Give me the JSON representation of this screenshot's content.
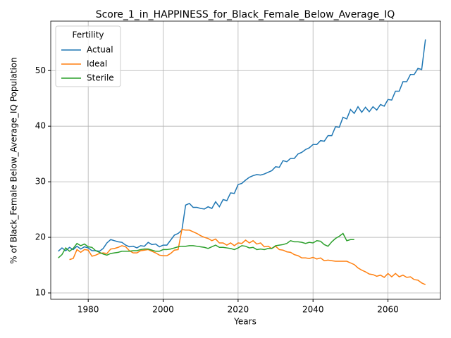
{
  "chart_data": {
    "type": "line",
    "title": "Score_1_in_HAPPINESS_for_Black_Female_Below_Average_IQ",
    "xlabel": "Years",
    "ylabel": "% of Black_Female Below_Average_IQ Population",
    "legend_title": "Fertility",
    "legend": "upper left",
    "grid": true,
    "xlim": [
      1970,
      2074
    ],
    "ylim": [
      8.86,
      58.9
    ],
    "xticks": [
      1980,
      2000,
      2020,
      2040,
      2060
    ],
    "yticks": [
      10,
      20,
      30,
      40,
      50
    ],
    "series": [
      {
        "name": "Actual",
        "color": "#1f77b4",
        "x": [
          1972,
          1973,
          1974,
          1975,
          1976,
          1977,
          1978,
          1979,
          1980,
          1981,
          1982,
          1983,
          1984,
          1985,
          1986,
          1987,
          1988,
          1989,
          1990,
          1991,
          1992,
          1993,
          1994,
          1995,
          1996,
          1997,
          1998,
          1999,
          2000,
          2001,
          2002,
          2003,
          2004,
          2005,
          2006,
          2007,
          2008,
          2009,
          2010,
          2011,
          2012,
          2013,
          2014,
          2015,
          2016,
          2017,
          2018,
          2019,
          2020,
          2021,
          2022,
          2023,
          2024,
          2025,
          2026,
          2027,
          2028,
          2029,
          2030,
          2031,
          2032,
          2033,
          2034,
          2035,
          2036,
          2037,
          2038,
          2039,
          2040,
          2041,
          2042,
          2043,
          2044,
          2045,
          2046,
          2047,
          2048,
          2049,
          2050,
          2051,
          2052,
          2053,
          2054,
          2055,
          2056,
          2057,
          2058,
          2059,
          2060,
          2061,
          2062,
          2063,
          2064,
          2065,
          2066,
          2067,
          2068,
          2069,
          2070
        ],
        "values": [
          17.5,
          18.1,
          17.6,
          18.2,
          17.8,
          18.4,
          17.9,
          18.3,
          18.1,
          17.6,
          17.6,
          17.5,
          18.0,
          19.0,
          19.6,
          19.4,
          19.2,
          19.1,
          18.6,
          18.3,
          18.4,
          18.1,
          18.5,
          18.4,
          19.1,
          18.7,
          18.8,
          18.3,
          18.6,
          18.6,
          19.5,
          20.4,
          20.7,
          21.3,
          25.8,
          26.1,
          25.4,
          25.4,
          25.2,
          25.1,
          25.5,
          25.2,
          26.4,
          25.5,
          26.8,
          26.6,
          28.0,
          27.9,
          29.5,
          29.7,
          30.3,
          30.8,
          31.1,
          31.3,
          31.2,
          31.4,
          31.7,
          32.0,
          32.7,
          32.6,
          33.8,
          33.6,
          34.2,
          34.2,
          35.0,
          35.3,
          35.8,
          36.1,
          36.7,
          36.7,
          37.4,
          37.3,
          38.3,
          38.3,
          39.9,
          39.8,
          41.6,
          41.3,
          43.0,
          42.3,
          43.5,
          42.5,
          43.4,
          42.6,
          43.5,
          42.9,
          43.9,
          43.6,
          44.8,
          44.7,
          46.3,
          46.3,
          48.0,
          48.0,
          49.3,
          49.3,
          50.4,
          50.2,
          55.6
        ]
      },
      {
        "name": "Ideal",
        "color": "#ff7f0e",
        "x": [
          1975,
          1976,
          1977,
          1978,
          1979,
          1980,
          1981,
          1982,
          1983,
          1984,
          1985,
          1986,
          1987,
          1988,
          1989,
          1990,
          1991,
          1992,
          1993,
          1994,
          1995,
          1996,
          1997,
          1998,
          1999,
          2000,
          2001,
          2002,
          2003,
          2004,
          2005,
          2006,
          2007,
          2008,
          2009,
          2010,
          2011,
          2012,
          2013,
          2014,
          2015,
          2016,
          2017,
          2018,
          2019,
          2020,
          2021,
          2022,
          2023,
          2024,
          2025,
          2026,
          2027,
          2028,
          2029,
          2030,
          2031,
          2032,
          2033,
          2034,
          2035,
          2036,
          2037,
          2038,
          2039,
          2040,
          2041,
          2042,
          2043,
          2044,
          2045,
          2046,
          2047,
          2048,
          2049,
          2050,
          2051,
          2052,
          2053,
          2054,
          2055,
          2056,
          2057,
          2058,
          2059,
          2060,
          2061,
          2062,
          2063,
          2064,
          2065,
          2066,
          2067,
          2068,
          2069,
          2070
        ],
        "values": [
          16.0,
          16.2,
          17.8,
          17.3,
          17.8,
          17.7,
          16.6,
          16.8,
          17.1,
          17.2,
          17.1,
          17.9,
          18.0,
          18.2,
          18.5,
          18.3,
          17.6,
          17.2,
          17.2,
          17.6,
          17.7,
          17.8,
          17.5,
          17.2,
          16.8,
          16.7,
          16.7,
          17.1,
          17.7,
          17.8,
          21.4,
          21.3,
          21.3,
          21.0,
          20.7,
          20.3,
          20.0,
          19.8,
          19.4,
          19.7,
          19.0,
          19.0,
          18.6,
          19.0,
          18.5,
          19.0,
          18.9,
          19.5,
          19.0,
          19.4,
          18.8,
          19.0,
          18.3,
          18.4,
          18.0,
          18.4,
          17.8,
          17.7,
          17.4,
          17.3,
          16.9,
          16.7,
          16.3,
          16.3,
          16.2,
          16.4,
          16.1,
          16.3,
          15.8,
          15.9,
          15.8,
          15.7,
          15.7,
          15.7,
          15.7,
          15.4,
          15.1,
          14.5,
          14.1,
          13.8,
          13.4,
          13.3,
          13.0,
          13.2,
          12.8,
          13.5,
          12.9,
          13.5,
          12.9,
          13.2,
          12.8,
          12.9,
          12.4,
          12.3,
          11.8,
          11.5
        ]
      },
      {
        "name": "Sterile",
        "color": "#2ca02c",
        "x": [
          1972,
          1973,
          1974,
          1975,
          1976,
          1977,
          1978,
          1979,
          1980,
          1981,
          1982,
          1983,
          1984,
          1985,
          1986,
          1987,
          1988,
          1989,
          1990,
          1991,
          1992,
          1993,
          1994,
          1995,
          1996,
          1997,
          1998,
          1999,
          2000,
          2001,
          2002,
          2003,
          2004,
          2005,
          2006,
          2007,
          2008,
          2009,
          2010,
          2011,
          2012,
          2013,
          2014,
          2015,
          2016,
          2017,
          2018,
          2019,
          2020,
          2021,
          2022,
          2023,
          2024,
          2025,
          2026,
          2027,
          2028,
          2029,
          2030,
          2031,
          2032,
          2033,
          2034,
          2035,
          2036,
          2037,
          2038,
          2039,
          2040,
          2041,
          2042,
          2043,
          2044,
          2045,
          2046,
          2047,
          2048,
          2049,
          2050,
          2051
        ],
        "values": [
          16.3,
          16.9,
          18.1,
          17.5,
          18.0,
          18.9,
          18.5,
          18.8,
          18.3,
          18.2,
          17.6,
          17.3,
          17.0,
          16.8,
          17.1,
          17.2,
          17.3,
          17.5,
          17.5,
          17.5,
          17.6,
          17.6,
          17.8,
          17.9,
          17.9,
          17.7,
          17.5,
          17.5,
          17.8,
          17.8,
          17.9,
          18.1,
          18.3,
          18.4,
          18.4,
          18.5,
          18.5,
          18.4,
          18.3,
          18.2,
          18.0,
          18.3,
          18.6,
          18.2,
          18.2,
          18.1,
          18.0,
          17.8,
          18.1,
          18.5,
          18.4,
          18.1,
          18.2,
          17.8,
          17.9,
          17.8,
          18.0,
          18.0,
          18.5,
          18.6,
          18.7,
          18.9,
          19.4,
          19.2,
          19.2,
          19.1,
          18.9,
          19.1,
          19.0,
          19.4,
          19.3,
          18.7,
          18.4,
          19.2,
          19.8,
          20.2,
          20.7,
          19.4,
          19.6,
          19.6
        ]
      }
    ]
  }
}
